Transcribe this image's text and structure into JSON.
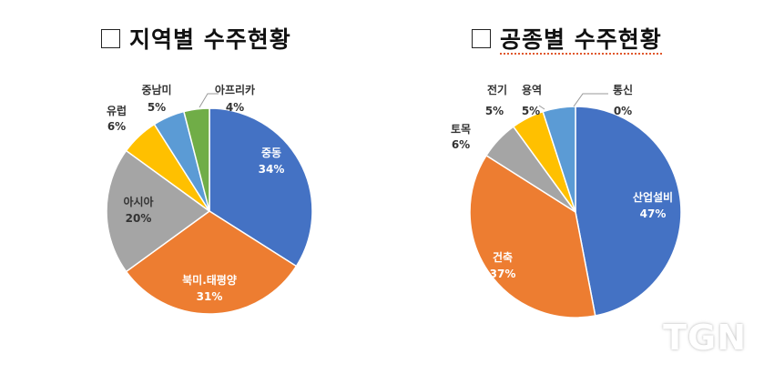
{
  "watermark": "TGN",
  "chart_data": [
    {
      "type": "pie",
      "title": "지역별 수주현황",
      "slices": [
        {
          "name": "중동",
          "value": 34,
          "label": "34%",
          "color": "#4472C4",
          "inside": true
        },
        {
          "name": "북미.태평양",
          "value": 31,
          "label": "31%",
          "color": "#ED7D31",
          "inside": true
        },
        {
          "name": "아시아",
          "value": 20,
          "label": "20%",
          "color": "#A5A5A5",
          "inside": true
        },
        {
          "name": "유럽",
          "value": 6,
          "label": "6%",
          "color": "#FFC000",
          "inside": false
        },
        {
          "name": "중남미",
          "value": 5,
          "label": "5%",
          "color": "#5B9BD5",
          "inside": false
        },
        {
          "name": "아프리카",
          "value": 4,
          "label": "4%",
          "color": "#70AD47",
          "inside": false
        }
      ]
    },
    {
      "type": "pie",
      "title": "공종별 수주현황",
      "slices": [
        {
          "name": "산업설비",
          "value": 47,
          "label": "47%",
          "color": "#4472C4",
          "inside": true
        },
        {
          "name": "건축",
          "value": 37,
          "label": "37%",
          "color": "#ED7D31",
          "inside": true
        },
        {
          "name": "토목",
          "value": 6,
          "label": "6%",
          "color": "#A5A5A5",
          "inside": false
        },
        {
          "name": "전기",
          "value": 5,
          "label": "5%",
          "color": "#FFC000",
          "inside": false
        },
        {
          "name": "용역",
          "value": 5,
          "label": "5%",
          "color": "#5B9BD5",
          "inside": false
        },
        {
          "name": "통신",
          "value": 0,
          "label": "0%",
          "color": "#70AD47",
          "inside": false
        }
      ]
    }
  ]
}
